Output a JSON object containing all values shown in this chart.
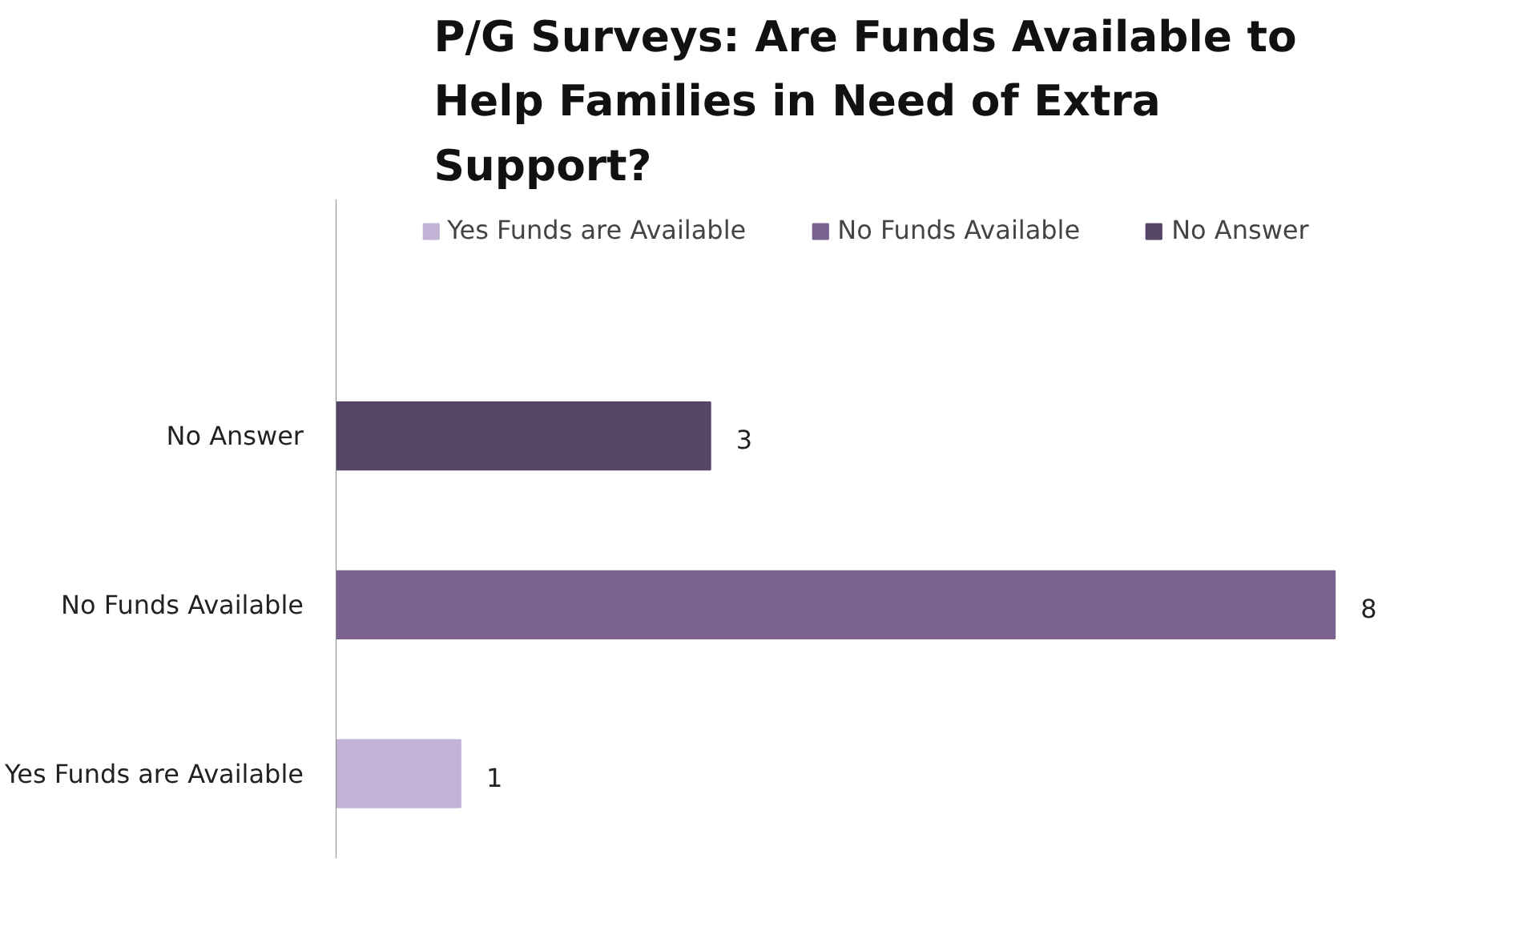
{
  "chart_data": {
    "type": "bar",
    "orientation": "horizontal",
    "title": "P/G Surveys: Are Funds Available to Help Families in Need of Extra Support?",
    "categories": [
      "No Answer",
      "No Funds Available",
      "Yes Funds are Available"
    ],
    "series": [
      {
        "name": "Yes Funds are Available",
        "color": "#c3b4d7",
        "values": [
          null,
          null,
          1
        ]
      },
      {
        "name": "No Funds Available",
        "color": "#7b6290",
        "values": [
          null,
          8,
          null
        ]
      },
      {
        "name": "No Answer",
        "color": "#574567",
        "values": [
          3,
          null,
          null
        ]
      }
    ],
    "data_labels": true,
    "legend": "top",
    "grid": false
  }
}
